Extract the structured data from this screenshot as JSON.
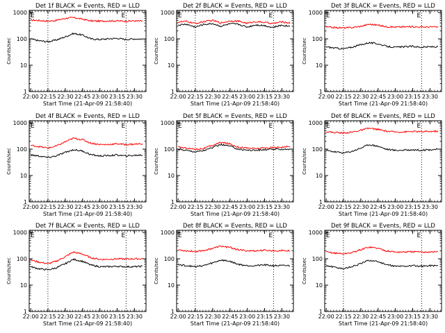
{
  "chart_data": [
    {
      "type": "line",
      "title": "Det 1f BLACK = Events, RED = LLD",
      "xlabel": "Start Time (21-Apr-09 21:58:40)",
      "ylabel": "Counts/sec",
      "y_scale": "log",
      "ylim": [
        1,
        1200
      ],
      "y_ticks": [
        1,
        10,
        100,
        1000
      ],
      "x_ticks": [
        "22:00",
        "22:15",
        "22:30",
        "22:45",
        "23:00",
        "23:15",
        "23:30"
      ],
      "markers": [
        "E",
        "E"
      ],
      "x": [
        "22:00",
        "22:07",
        "22:15",
        "22:22",
        "22:30",
        "22:37",
        "22:45",
        "22:52",
        "23:00",
        "23:07",
        "23:15",
        "23:22",
        "23:30",
        "23:37"
      ],
      "series": [
        {
          "color": "#ff0000",
          "values": [
            520,
            500,
            470,
            500,
            600,
            640,
            560,
            480,
            470,
            480,
            480,
            470,
            480,
            470
          ]
        },
        {
          "color": "#000000",
          "values": [
            100,
            85,
            78,
            90,
            120,
            160,
            140,
            100,
            95,
            100,
            105,
            95,
            100,
            98
          ]
        }
      ]
    },
    {
      "type": "line",
      "title": "Det 2f BLACK = Events, RED = LLD",
      "xlabel": "Start Time (21-Apr-09 21:58:40)",
      "ylabel": "Counts/sec",
      "y_scale": "log",
      "ylim": [
        1,
        1200
      ],
      "y_ticks": [
        1,
        10,
        100,
        1000
      ],
      "x_ticks": [
        "22:00",
        "22:15",
        "22:30",
        "22:45",
        "23:00",
        "23:15",
        "23:30"
      ],
      "markers": [
        "E",
        "E"
      ],
      "x": [
        "22:00",
        "22:07",
        "22:15",
        "22:22",
        "22:30",
        "22:37",
        "22:45",
        "22:52",
        "23:00",
        "23:07",
        "23:15",
        "23:22",
        "23:30",
        "23:37"
      ],
      "series": [
        {
          "color": "#ff0000",
          "values": [
            430,
            460,
            380,
            450,
            500,
            400,
            480,
            470,
            390,
            450,
            420,
            380,
            440,
            400
          ]
        },
        {
          "color": "#000000",
          "values": [
            330,
            360,
            280,
            350,
            380,
            300,
            370,
            360,
            280,
            340,
            320,
            270,
            330,
            300
          ]
        }
      ]
    },
    {
      "type": "line",
      "title": "Det 3f BLACK = Events, RED = LLD",
      "xlabel": "Start Time (21-Apr-09 21:58:40)",
      "ylabel": "Counts/sec",
      "y_scale": "log",
      "ylim": [
        1,
        1200
      ],
      "y_ticks": [
        1,
        10,
        100,
        1000
      ],
      "x_ticks": [
        "22:00",
        "22:15",
        "22:30",
        "22:45",
        "23:00",
        "23:15",
        "23:30"
      ],
      "markers": [
        "E",
        "E"
      ],
      "x": [
        "22:00",
        "22:07",
        "22:15",
        "22:22",
        "22:30",
        "22:37",
        "22:45",
        "22:52",
        "23:00",
        "23:07",
        "23:15",
        "23:22",
        "23:30",
        "23:37"
      ],
      "series": [
        {
          "color": "#ff0000",
          "values": [
            280,
            270,
            260,
            270,
            300,
            360,
            330,
            290,
            280,
            285,
            290,
            280,
            285,
            280
          ]
        },
        {
          "color": "#000000",
          "values": [
            50,
            45,
            42,
            48,
            60,
            72,
            65,
            52,
            48,
            50,
            52,
            48,
            50,
            50
          ]
        }
      ]
    },
    {
      "type": "line",
      "title": "Det 4f BLACK = Events, RED = LLD",
      "xlabel": "Start Time (21-Apr-09 21:58:40)",
      "ylabel": "Counts/sec",
      "y_scale": "log",
      "ylim": [
        1,
        1200
      ],
      "y_ticks": [
        1,
        10,
        100,
        1000
      ],
      "x_ticks": [
        "22:00",
        "22:15",
        "22:30",
        "22:45",
        "23:00",
        "23:15",
        "23:30"
      ],
      "markers": [
        "E",
        "E"
      ],
      "x": [
        "22:00",
        "22:07",
        "22:15",
        "22:22",
        "22:30",
        "22:37",
        "22:45",
        "22:52",
        "23:00",
        "23:07",
        "23:15",
        "23:22",
        "23:30",
        "23:37"
      ],
      "series": [
        {
          "color": "#ff0000",
          "values": [
            140,
            125,
            110,
            130,
            190,
            260,
            230,
            170,
            150,
            150,
            160,
            150,
            155,
            160
          ]
        },
        {
          "color": "#000000",
          "values": [
            60,
            55,
            48,
            55,
            75,
            95,
            85,
            62,
            55,
            57,
            60,
            55,
            58,
            60
          ]
        }
      ]
    },
    {
      "type": "line",
      "title": "Det 5f BLACK = Events, RED = LLD",
      "xlabel": "Start Time (21-Apr-09 21:58:40)",
      "ylabel": "Counts/sec",
      "y_scale": "log",
      "ylim": [
        1,
        1200
      ],
      "y_ticks": [
        1,
        10,
        100,
        1000
      ],
      "x_ticks": [
        "22:00",
        "22:15",
        "22:30",
        "22:45",
        "23:00",
        "23:15",
        "23:30"
      ],
      "markers": [
        "E",
        "E"
      ],
      "x": [
        "22:00",
        "22:07",
        "22:15",
        "22:22",
        "22:30",
        "22:37",
        "22:45",
        "22:52",
        "23:00",
        "23:07",
        "23:15",
        "23:22",
        "23:30",
        "23:37"
      ],
      "series": [
        {
          "color": "#ff0000",
          "values": [
            120,
            110,
            100,
            105,
            140,
            180,
            160,
            120,
            110,
            105,
            110,
            115,
            120,
            125
          ]
        },
        {
          "color": "#000000",
          "values": [
            100,
            90,
            80,
            88,
            115,
            150,
            130,
            100,
            92,
            90,
            95,
            98,
            100,
            100
          ]
        }
      ]
    },
    {
      "type": "line",
      "title": "Det 6f BLACK = Events, RED = LLD",
      "xlabel": "Start Time (21-Apr-09 21:58:40)",
      "ylabel": "Counts/sec",
      "y_scale": "log",
      "ylim": [
        1,
        1200
      ],
      "y_ticks": [
        1,
        10,
        100,
        1000
      ],
      "x_ticks": [
        "22:00",
        "22:15",
        "22:30",
        "22:45",
        "23:00",
        "23:15",
        "23:30"
      ],
      "markers": [
        "E",
        "E"
      ],
      "x": [
        "22:00",
        "22:07",
        "22:15",
        "22:22",
        "22:30",
        "22:37",
        "22:45",
        "22:52",
        "23:00",
        "23:07",
        "23:15",
        "23:22",
        "23:30",
        "23:37"
      ],
      "series": [
        {
          "color": "#ff0000",
          "values": [
            460,
            430,
            410,
            440,
            520,
            620,
            560,
            480,
            450,
            450,
            470,
            460,
            470,
            480
          ]
        },
        {
          "color": "#000000",
          "values": [
            90,
            80,
            72,
            82,
            110,
            150,
            130,
            100,
            90,
            92,
            95,
            92,
            95,
            100
          ]
        }
      ]
    },
    {
      "type": "line",
      "title": "Det 7f BLACK = Events, RED = LLD",
      "xlabel": "Start Time (21-Apr-09 21:58:40)",
      "ylabel": "Counts/sec",
      "y_scale": "log",
      "ylim": [
        1,
        1200
      ],
      "y_ticks": [
        1,
        10,
        100,
        1000
      ],
      "x_ticks": [
        "22:00",
        "22:15",
        "22:30",
        "22:45",
        "23:00",
        "23:15",
        "23:30"
      ],
      "markers": [
        "E",
        "E"
      ],
      "x": [
        "22:00",
        "22:07",
        "22:15",
        "22:22",
        "22:30",
        "22:37",
        "22:45",
        "22:52",
        "23:00",
        "23:07",
        "23:15",
        "23:22",
        "23:30",
        "23:37"
      ],
      "series": [
        {
          "color": "#ff0000",
          "values": [
            90,
            75,
            65,
            80,
            120,
            180,
            150,
            110,
            95,
            95,
            100,
            98,
            100,
            100
          ]
        },
        {
          "color": "#000000",
          "values": [
            50,
            42,
            38,
            45,
            65,
            95,
            80,
            58,
            50,
            50,
            52,
            50,
            50,
            52
          ]
        }
      ]
    },
    {
      "type": "line",
      "title": "Det 8f BLACK = Events, RED = LLD",
      "xlabel": "Start Time (21-Apr-09 21:58:40)",
      "ylabel": "Counts/sec",
      "y_scale": "log",
      "ylim": [
        1,
        1200
      ],
      "y_ticks": [
        1,
        10,
        100,
        1000
      ],
      "x_ticks": [
        "22:00",
        "22:15",
        "22:30",
        "22:45",
        "23:00",
        "23:15",
        "23:30"
      ],
      "markers": [
        "E",
        "E"
      ],
      "x": [
        "22:00",
        "22:07",
        "22:15",
        "22:22",
        "22:30",
        "22:37",
        "22:45",
        "22:52",
        "23:00",
        "23:07",
        "23:15",
        "23:22",
        "23:30",
        "23:37"
      ],
      "series": [
        {
          "color": "#ff0000",
          "values": [
            220,
            200,
            190,
            205,
            250,
            300,
            270,
            220,
            200,
            200,
            210,
            200,
            205,
            200
          ]
        },
        {
          "color": "#000000",
          "values": [
            60,
            55,
            50,
            55,
            70,
            90,
            80,
            62,
            55,
            55,
            58,
            55,
            55,
            55
          ]
        }
      ]
    },
    {
      "type": "line",
      "title": "Det 9f BLACK = Events, RED = LLD",
      "xlabel": "Start Time (21-Apr-09 21:58:40)",
      "ylabel": "Counts/sec",
      "y_scale": "log",
      "ylim": [
        1,
        1200
      ],
      "y_ticks": [
        1,
        10,
        100,
        1000
      ],
      "x_ticks": [
        "22:00",
        "22:15",
        "22:30",
        "22:45",
        "23:00",
        "23:15",
        "23:30"
      ],
      "markers": [
        "E",
        "E"
      ],
      "x": [
        "22:00",
        "22:07",
        "22:15",
        "22:22",
        "22:30",
        "22:37",
        "22:45",
        "22:52",
        "23:00",
        "23:07",
        "23:15",
        "23:22",
        "23:30",
        "23:37"
      ],
      "series": [
        {
          "color": "#ff0000",
          "values": [
            180,
            165,
            155,
            170,
            220,
            280,
            250,
            200,
            180,
            180,
            185,
            180,
            182,
            185
          ]
        },
        {
          "color": "#000000",
          "values": [
            55,
            48,
            42,
            50,
            65,
            88,
            78,
            60,
            52,
            52,
            55,
            52,
            55,
            55
          ]
        }
      ]
    }
  ]
}
